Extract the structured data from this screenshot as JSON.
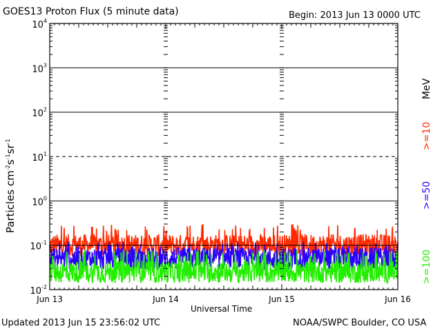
{
  "chart_data": {
    "type": "line",
    "title": "GOES13 Proton Flux (5 minute data)",
    "begin_text": "Begin: 2013 Jun 13 0000 UTC",
    "xlabel": "Universal Time",
    "ylabel": "Particles cm⁻²s⁻¹sr⁻¹",
    "ylabel_parts": [
      "Particles cm",
      "-2",
      "s",
      "-1",
      "sr",
      "-1"
    ],
    "x_ticks": [
      "Jun 13",
      "Jun 14",
      "Jun 15",
      "Jun 16"
    ],
    "x_range_days": [
      0,
      3
    ],
    "y_scale": "log",
    "ylim": [
      0.01,
      10000
    ],
    "y_ticks": [
      {
        "base": "10",
        "exp": "-2"
      },
      {
        "base": "10",
        "exp": "-1"
      },
      {
        "base": "10",
        "exp": "0"
      },
      {
        "base": "10",
        "exp": "1"
      },
      {
        "base": "10",
        "exp": "2"
      },
      {
        "base": "10",
        "exp": "3"
      },
      {
        "base": "10",
        "exp": "4"
      }
    ],
    "threshold_line": 10,
    "unit_label": "MeV",
    "series": [
      {
        "name": ">=10",
        "color": "#ff2a00",
        "typical": 0.1,
        "peak": 0.3
      },
      {
        "name": ">=50",
        "color": "#2a00ff",
        "typical": 0.05,
        "peak": 0.12
      },
      {
        "name": ">=100",
        "color": "#22ee00",
        "typical": 0.025,
        "peak": 0.08
      }
    ],
    "grid": true
  },
  "footer": {
    "updated": "Updated 2013 Jun 15 23:56:02 UTC",
    "source": "NOAA/SWPC Boulder, CO USA"
  }
}
